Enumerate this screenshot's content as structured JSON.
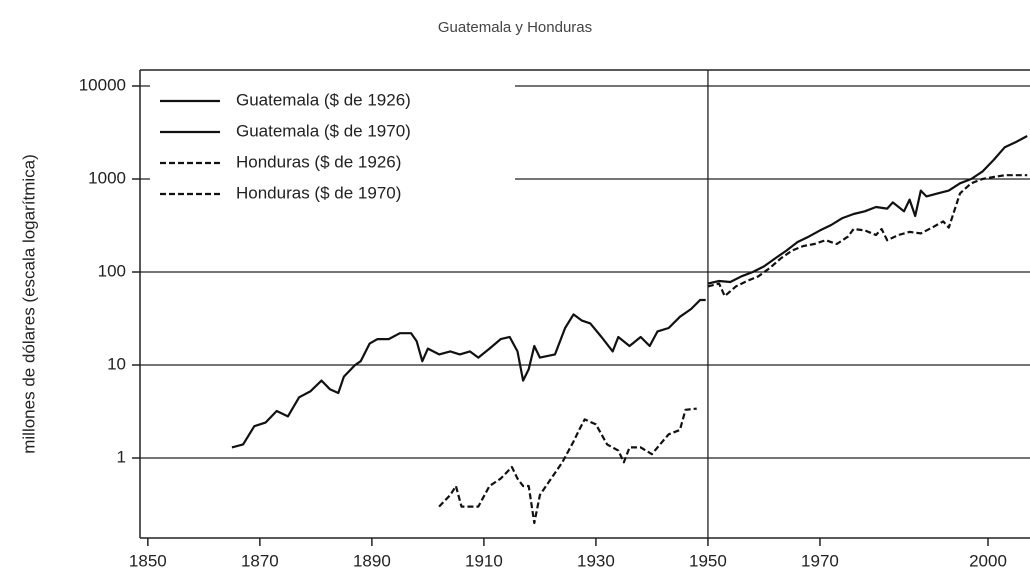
{
  "chart_data": {
    "type": "line",
    "title": "Guatemala y Honduras",
    "y_label": "millones de dólares (escala logarítmica)",
    "log_y": true,
    "grid": true,
    "legend": "upper left",
    "reference_line_x": 1950,
    "xlim": [
      1848.6,
      2007.5
    ],
    "xticks": [
      1850,
      1870,
      1890,
      1910,
      1930,
      1950,
      1970,
      2000
    ],
    "ylim": [
      0.138,
      14860
    ],
    "yticks": [
      1,
      10,
      100,
      1000,
      10000
    ],
    "series": [
      {
        "name": "Guatemala ($ de 1926)",
        "color": "#111111",
        "linestyle": "solid",
        "x": [
          1865,
          1867,
          1869,
          1871,
          1873,
          1875,
          1877,
          1879,
          1881,
          1882.5,
          1884,
          1885,
          1887,
          1888,
          1889.6,
          1891,
          1893,
          1895,
          1897,
          1898,
          1899,
          1900,
          1902,
          1904,
          1905.7,
          1907.5,
          1909,
          1911,
          1913,
          1914.6,
          1916,
          1917,
          1918,
          1919,
          1920,
          1922.7,
          1924.5,
          1926,
          1927.5,
          1929,
          1931,
          1933,
          1934,
          1936,
          1938,
          1939.6,
          1941,
          1943,
          1945,
          1947,
          1948.6,
          1949.6
        ],
        "values": [
          1.3,
          1.4,
          2.2,
          2.4,
          3.2,
          2.8,
          4.5,
          5.2,
          6.8,
          5.5,
          5,
          7.5,
          10,
          11,
          17,
          19,
          19,
          22,
          22,
          18,
          11,
          15,
          13,
          14,
          13,
          14,
          12,
          15,
          19,
          20,
          14,
          6.8,
          9,
          16,
          12,
          13,
          25,
          35,
          30,
          28,
          20,
          14,
          20,
          16,
          20,
          16,
          23,
          25,
          33,
          40,
          50,
          50
        ]
      },
      {
        "name": "Guatemala ($ de 1970)",
        "color": "#111111",
        "linestyle": "solid",
        "x": [
          1950,
          1952,
          1954,
          1956,
          1958,
          1960,
          1962,
          1964,
          1966,
          1968,
          1970,
          1972,
          1974,
          1976,
          1978,
          1980,
          1982,
          1983,
          1985,
          1986,
          1987,
          1988,
          1989,
          1991,
          1993,
          1995,
          1997,
          1999,
          2001,
          2003,
          2005,
          2007
        ],
        "values": [
          75,
          80,
          78,
          90,
          100,
          115,
          140,
          170,
          210,
          240,
          280,
          320,
          380,
          420,
          450,
          500,
          480,
          560,
          450,
          600,
          400,
          750,
          650,
          700,
          750,
          900,
          1000,
          1200,
          1600,
          2200,
          2500,
          2900
        ]
      },
      {
        "name": "Honduras ($ de 1926)",
        "color": "#111111",
        "linestyle": "dashed",
        "x": [
          1902,
          1904,
          1905,
          1906,
          1909,
          1911,
          1913,
          1915,
          1916,
          1917,
          1918,
          1919,
          1920,
          1922,
          1924,
          1926,
          1927,
          1928,
          1930,
          1932,
          1934,
          1935,
          1936,
          1938,
          1940,
          1941,
          1943,
          1945,
          1946,
          1948
        ],
        "values": [
          0.3,
          0.4,
          0.5,
          0.3,
          0.3,
          0.5,
          0.6,
          0.8,
          0.6,
          0.5,
          0.5,
          0.2,
          0.4,
          0.6,
          0.9,
          1.5,
          2.0,
          2.6,
          2.3,
          1.4,
          1.2,
          0.9,
          1.3,
          1.3,
          1.1,
          1.3,
          1.8,
          2.0,
          3.3,
          3.4
        ]
      },
      {
        "name": "Honduras ($ de 1970)",
        "color": "#111111",
        "linestyle": "dashed",
        "x": [
          1950,
          1952,
          1953,
          1955,
          1957,
          1959,
          1961,
          1963,
          1965,
          1967,
          1969,
          1971,
          1973,
          1975,
          1976,
          1978,
          1980,
          1981,
          1982,
          1984,
          1986,
          1988,
          1990,
          1992,
          1993,
          1995,
          1997,
          1999,
          2001,
          2003,
          2005,
          2007
        ],
        "values": [
          70,
          75,
          55,
          70,
          80,
          90,
          110,
          140,
          170,
          190,
          200,
          220,
          200,
          240,
          290,
          280,
          250,
          290,
          220,
          250,
          270,
          260,
          300,
          350,
          300,
          700,
          900,
          1000,
          1050,
          1100,
          1100,
          1100
        ]
      }
    ]
  }
}
